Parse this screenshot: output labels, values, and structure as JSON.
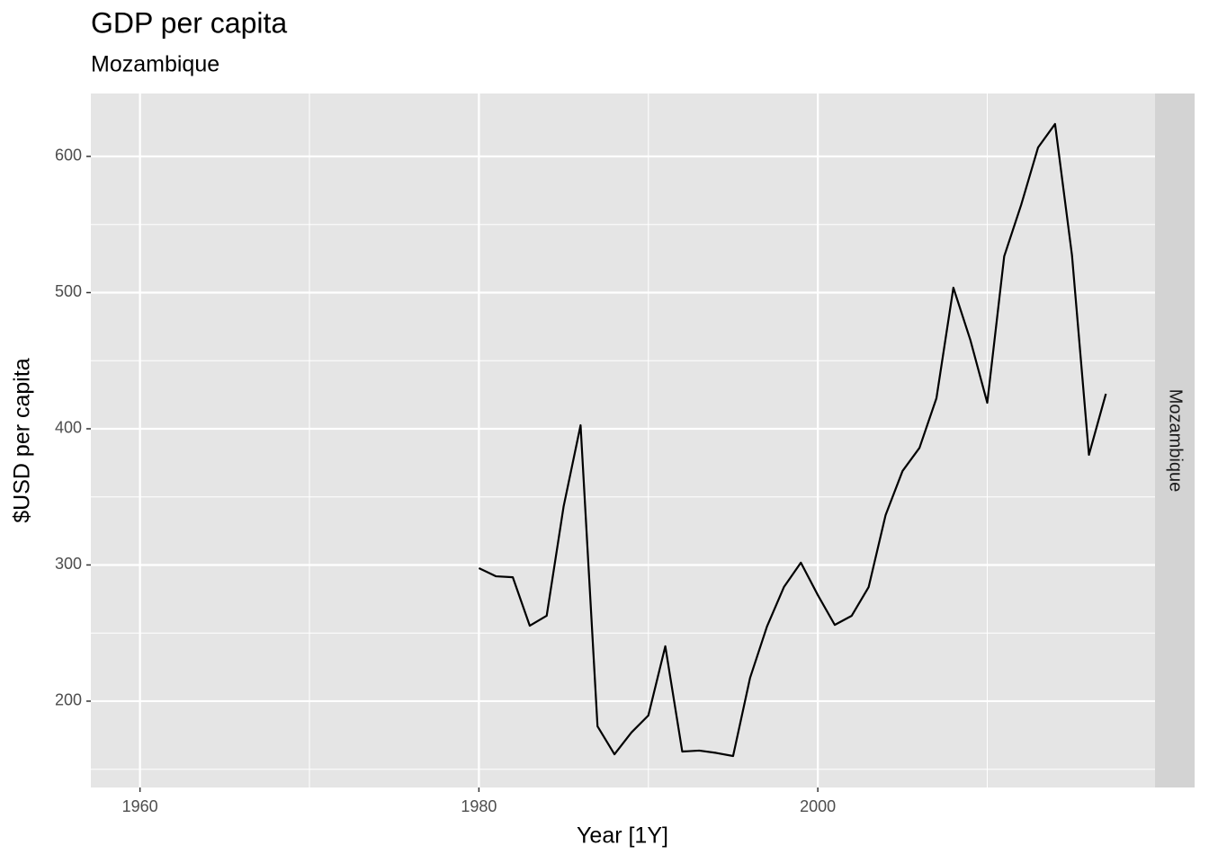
{
  "chart_data": {
    "type": "line",
    "title": "GDP per capita",
    "subtitle": "Mozambique",
    "facet_label": "Mozambique",
    "xlabel": "Year [1Y]",
    "ylabel": "$USD per capita",
    "x": [
      1980,
      1981,
      1982,
      1983,
      1984,
      1985,
      1986,
      1987,
      1988,
      1989,
      1990,
      1991,
      1992,
      1993,
      1994,
      1995,
      1996,
      1997,
      1998,
      1999,
      2000,
      2001,
      2002,
      2003,
      2004,
      2005,
      2006,
      2007,
      2008,
      2009,
      2010,
      2011,
      2012,
      2013,
      2014,
      2015,
      2016,
      2017
    ],
    "series": [
      {
        "name": "Mozambique",
        "color": "#000000",
        "values": [
          297.7,
          291.7,
          291,
          255.4,
          262.7,
          343,
          402.6,
          181.5,
          161,
          177,
          189.5,
          240.3,
          163,
          163.7,
          162,
          159.7,
          217,
          254.8,
          283.8,
          301.7,
          277.9,
          256,
          262.7,
          283.8,
          336.6,
          369,
          386,
          422.4,
          503.6,
          465.3,
          419.1,
          526.7,
          564.4,
          606.6,
          623.8,
          527.4,
          380.9,
          425.7
        ]
      }
    ],
    "xlim": [
      1957.1,
      2019.9
    ],
    "xticks": [
      1960,
      1980,
      2000
    ],
    "ylim": [
      136.6,
      646.2
    ],
    "yticks": [
      200,
      300,
      400,
      500,
      600
    ],
    "grid": true
  }
}
